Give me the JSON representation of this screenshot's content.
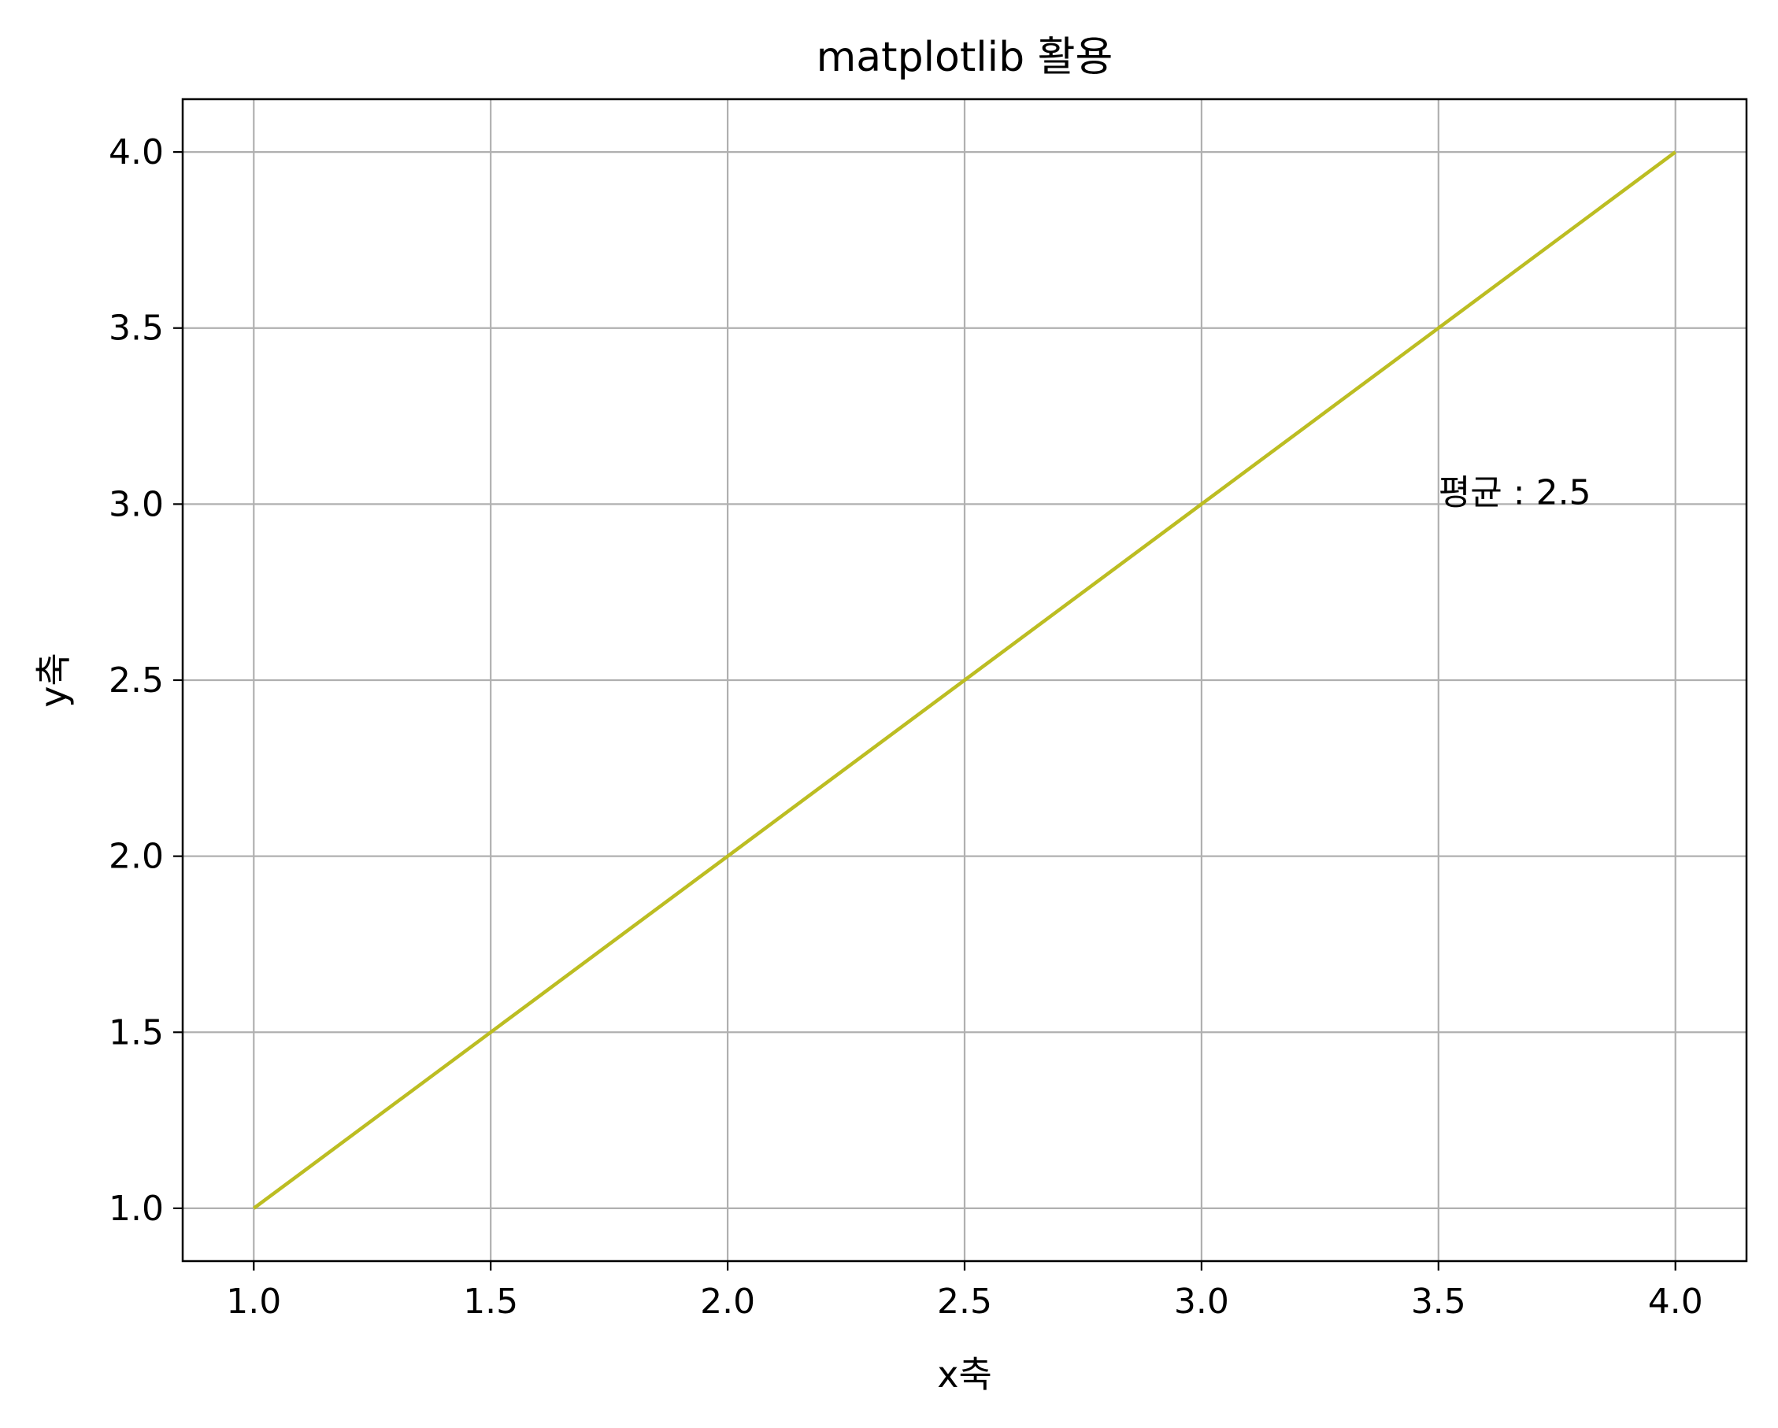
{
  "chart_data": {
    "type": "line",
    "title": "matplotlib 활용",
    "xlabel": "x축",
    "ylabel": "y축",
    "x": [
      1,
      2,
      3,
      4
    ],
    "series": [
      {
        "values": [
          1,
          2,
          3,
          4
        ],
        "color": "#bcbd22"
      }
    ],
    "xlim": [
      0.85,
      4.15
    ],
    "ylim": [
      0.85,
      4.15
    ],
    "xticks": [
      1.0,
      1.5,
      2.0,
      2.5,
      3.0,
      3.5,
      4.0
    ],
    "yticks": [
      1.0,
      1.5,
      2.0,
      2.5,
      3.0,
      3.5,
      4.0
    ],
    "xtick_labels": [
      "1.0",
      "1.5",
      "2.0",
      "2.5",
      "3.0",
      "3.5",
      "4.0"
    ],
    "ytick_labels": [
      "1.0",
      "1.5",
      "2.0",
      "2.5",
      "3.0",
      "3.5",
      "4.0"
    ],
    "grid": true,
    "grid_color": "#b0b0b0",
    "annotations": [
      {
        "text": "평균 : 2.5",
        "x": 3.5,
        "y": 3.0
      }
    ]
  }
}
